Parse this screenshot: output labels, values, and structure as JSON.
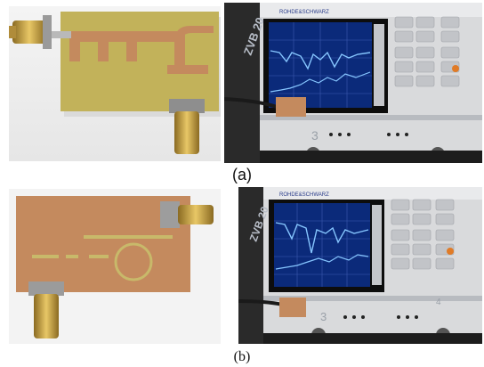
{
  "figure": {
    "captions": {
      "a": "(a)",
      "b": "(b)"
    },
    "instrument": {
      "brand": "ROHDE&SCHWARZ",
      "model": "ZVB 20",
      "front_numbers": [
        "3",
        "4"
      ]
    },
    "colors": {
      "pcb_copper": "#c48a5e",
      "fr4_substrate": "#c2b25a",
      "connector_gold": "#cfa94a",
      "vna_body": "#d9dadc",
      "screen_bg": "#0b2a7a",
      "trace": "#86c6ff"
    }
  }
}
